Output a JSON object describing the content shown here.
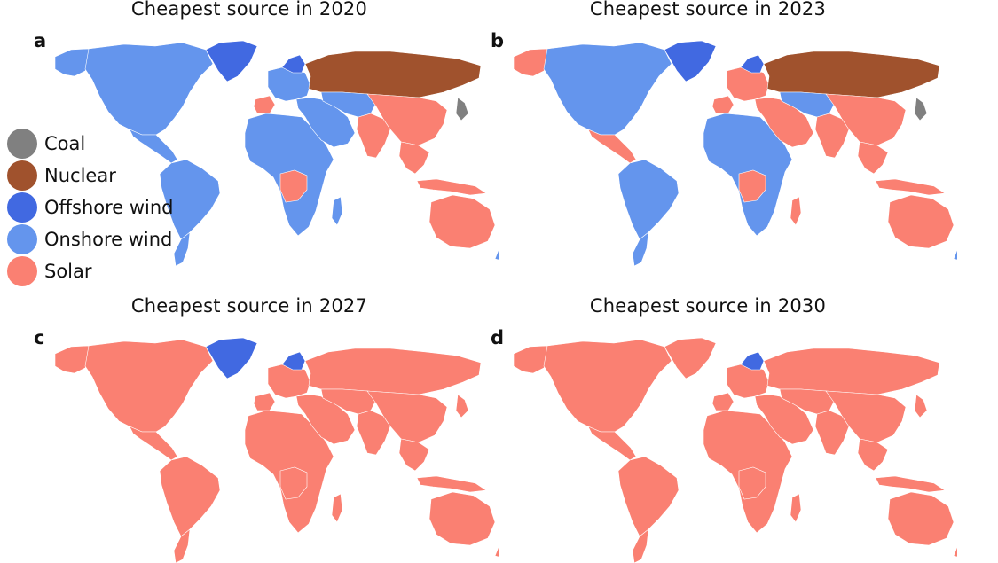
{
  "colors": {
    "coal": "#808080",
    "nuclear": "#a0522d",
    "offshore": "#4169e1",
    "onshore": "#6495ed",
    "solar": "#fa8072"
  },
  "legend": [
    {
      "label": "Coal",
      "color": "#808080"
    },
    {
      "label": "Nuclear",
      "color": "#a0522d"
    },
    {
      "label": "Offshore wind",
      "color": "#4169e1"
    },
    {
      "label": "Onshore wind",
      "color": "#6495ed"
    },
    {
      "label": "Solar",
      "color": "#fa8072"
    }
  ],
  "panels": [
    {
      "letter": "a",
      "title": "Cheapest source in 2020",
      "regions": {
        "north_america": "onshore",
        "greenland": "offshore",
        "alaska": "onshore",
        "central_america": "onshore",
        "south_america": "onshore",
        "patagonia": "onshore",
        "africa": "onshore",
        "central_africa": "solar",
        "madagascar": "onshore",
        "europe": "onshore",
        "europe_north": "offshore",
        "iberia": "solar",
        "russia": "nuclear",
        "middle_east": "onshore",
        "central_asia": "onshore",
        "south_asia": "solar",
        "china": "solar",
        "japan": "coal",
        "southeast_asia": "solar",
        "indonesia": "solar",
        "australia": "solar",
        "new_zealand": "onshore"
      }
    },
    {
      "letter": "b",
      "title": "Cheapest source in 2023",
      "regions": {
        "north_america": "onshore",
        "greenland": "offshore",
        "alaska": "solar",
        "central_america": "solar",
        "south_america": "onshore",
        "patagonia": "onshore",
        "africa": "onshore",
        "central_africa": "solar",
        "madagascar": "solar",
        "europe": "solar",
        "europe_north": "offshore",
        "iberia": "solar",
        "russia": "nuclear",
        "middle_east": "solar",
        "central_asia": "onshore",
        "south_asia": "solar",
        "china": "solar",
        "japan": "coal",
        "southeast_asia": "solar",
        "indonesia": "solar",
        "australia": "solar",
        "new_zealand": "onshore"
      }
    },
    {
      "letter": "c",
      "title": "Cheapest source in 2027",
      "regions": {
        "north_america": "solar",
        "greenland": "offshore",
        "alaska": "solar",
        "central_america": "solar",
        "south_america": "solar",
        "patagonia": "solar",
        "africa": "solar",
        "central_africa": "solar",
        "madagascar": "solar",
        "europe": "solar",
        "europe_north": "offshore",
        "iberia": "solar",
        "russia": "solar",
        "middle_east": "solar",
        "central_asia": "solar",
        "south_asia": "solar",
        "china": "solar",
        "japan": "solar",
        "southeast_asia": "solar",
        "indonesia": "solar",
        "australia": "solar",
        "new_zealand": "solar"
      }
    },
    {
      "letter": "d",
      "title": "Cheapest source in 2030",
      "regions": {
        "north_america": "solar",
        "greenland": "solar",
        "alaska": "solar",
        "central_america": "solar",
        "south_america": "solar",
        "patagonia": "solar",
        "africa": "solar",
        "central_africa": "solar",
        "madagascar": "solar",
        "europe": "solar",
        "europe_north": "offshore",
        "iberia": "solar",
        "russia": "solar",
        "middle_east": "solar",
        "central_asia": "solar",
        "south_asia": "solar",
        "china": "solar",
        "japan": "solar",
        "southeast_asia": "solar",
        "indonesia": "solar",
        "australia": "solar",
        "new_zealand": "solar"
      }
    }
  ]
}
